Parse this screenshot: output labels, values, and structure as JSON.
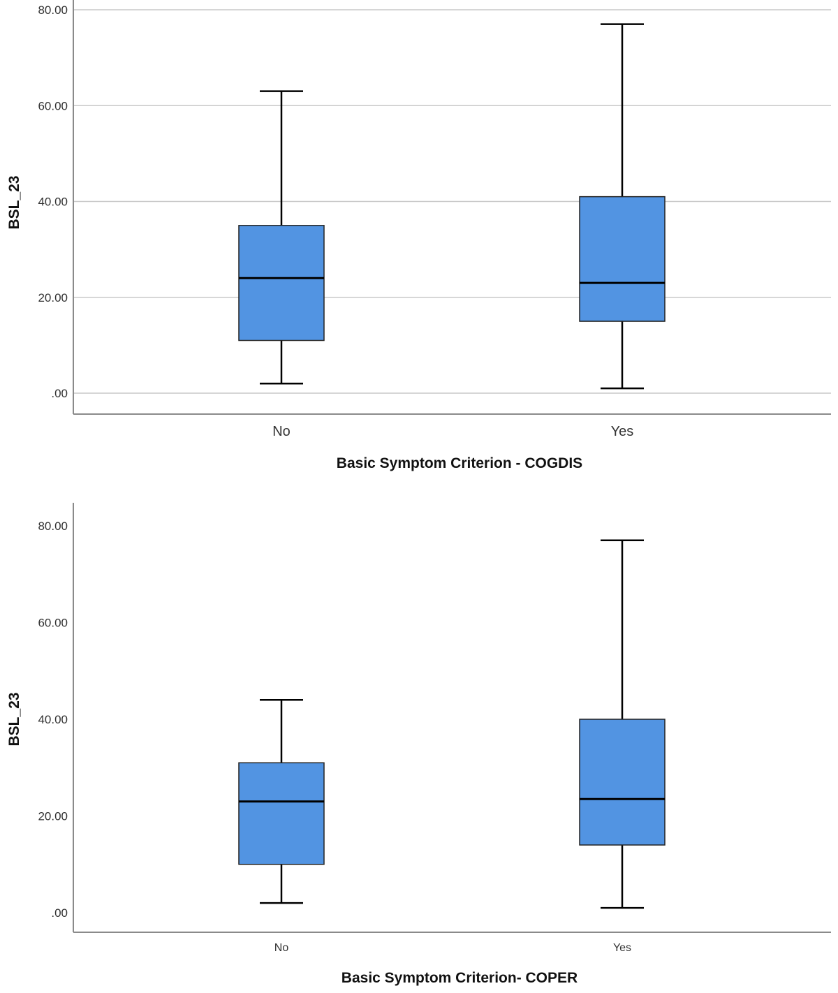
{
  "chart_data": [
    {
      "type": "boxplot",
      "xlabel": "Basic Symptom Criterion - COGDIS",
      "ylabel": "BSL_23",
      "ylim": [
        -4,
        80
      ],
      "yticks": [
        0,
        20,
        40,
        60,
        80
      ],
      "ytick_labels": [
        ".00",
        "20.00",
        "40.00",
        "60.00",
        "80.00"
      ],
      "grid": true,
      "categories": [
        "No",
        "Yes"
      ],
      "boxes": [
        {
          "category": "No",
          "min": 2,
          "q1": 11,
          "median": 24,
          "q3": 35,
          "max": 63
        },
        {
          "category": "Yes",
          "min": 1,
          "q1": 15,
          "median": 23,
          "q3": 41,
          "max": 77
        }
      ]
    },
    {
      "type": "boxplot",
      "xlabel": "Basic Symptom Criterion- COPER",
      "ylabel": "BSL_23",
      "ylim": [
        -4,
        84
      ],
      "yticks": [
        0,
        20,
        40,
        60,
        80
      ],
      "ytick_labels": [
        ".00",
        "20.00",
        "40.00",
        "60.00",
        "80.00"
      ],
      "grid": false,
      "categories": [
        "No",
        "Yes"
      ],
      "boxes": [
        {
          "category": "No",
          "min": 2,
          "q1": 10,
          "median": 23,
          "q3": 31,
          "max": 44
        },
        {
          "category": "Yes",
          "min": 1,
          "q1": 14,
          "median": 23.5,
          "q3": 40,
          "max": 77
        }
      ]
    }
  ],
  "colors": {
    "box_fill": "#5294e2",
    "grid": "#c8c8c8",
    "axis": "#8a8a8a"
  }
}
